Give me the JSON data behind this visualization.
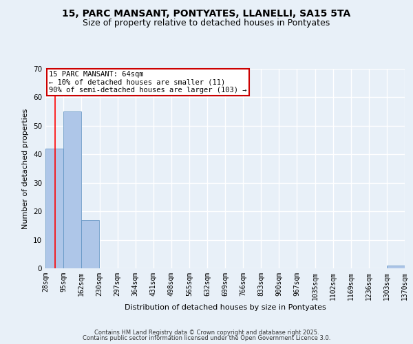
{
  "title_line1": "15, PARC MANSANT, PONTYATES, LLANELLI, SA15 5TA",
  "title_line2": "Size of property relative to detached houses in Pontyates",
  "xlabel": "Distribution of detached houses by size in Pontyates",
  "ylabel": "Number of detached properties",
  "bins": [
    28,
    95,
    162,
    230,
    297,
    364,
    431,
    498,
    565,
    632,
    699,
    766,
    833,
    900,
    967,
    1035,
    1102,
    1169,
    1236,
    1303,
    1370
  ],
  "bin_labels": [
    "28sqm",
    "95sqm",
    "162sqm",
    "230sqm",
    "297sqm",
    "364sqm",
    "431sqm",
    "498sqm",
    "565sqm",
    "632sqm",
    "699sqm",
    "766sqm",
    "833sqm",
    "900sqm",
    "967sqm",
    "1035sqm",
    "1102sqm",
    "1169sqm",
    "1236sqm",
    "1303sqm",
    "1370sqm"
  ],
  "values": [
    42,
    55,
    17,
    0,
    0,
    0,
    0,
    0,
    0,
    0,
    0,
    0,
    0,
    0,
    0,
    0,
    0,
    0,
    0,
    1,
    0
  ],
  "bar_color": "#aec6e8",
  "bar_edge_color": "#5a8fc0",
  "red_line_x": 64,
  "ylim": [
    0,
    70
  ],
  "annotation_text": "15 PARC MANSANT: 64sqm\n← 10% of detached houses are smaller (11)\n90% of semi-detached houses are larger (103) →",
  "annotation_box_color": "#ffffff",
  "annotation_border_color": "#cc0000",
  "footer_line1": "Contains HM Land Registry data © Crown copyright and database right 2025.",
  "footer_line2": "Contains public sector information licensed under the Open Government Licence 3.0.",
  "bg_color": "#e8f0f8",
  "plot_bg_color": "#e8f0f8",
  "grid_color": "#ffffff",
  "title_fontsize": 10,
  "subtitle_fontsize": 9,
  "tick_fontsize": 7,
  "ylabel_fontsize": 8,
  "xlabel_fontsize": 8,
  "annotation_fontsize": 7.5,
  "footer_fontsize": 6
}
